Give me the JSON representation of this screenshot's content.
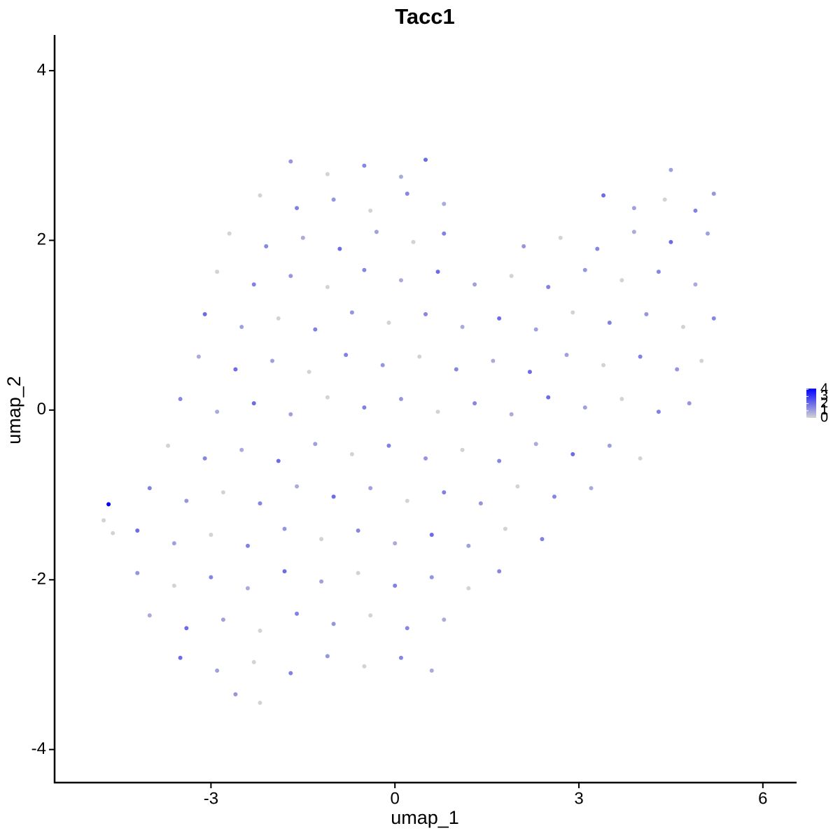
{
  "chart_data": {
    "type": "scatter",
    "title": "Tacc1",
    "xlabel": "umap_1",
    "ylabel": "umap_2",
    "xlim": [
      -5.55,
      6.55
    ],
    "ylim": [
      -4.39,
      4.42
    ],
    "xticks": [
      -3,
      0,
      3,
      6
    ],
    "yticks": [
      -4,
      -2,
      0,
      2,
      4
    ],
    "color_low": "#d3d3d3",
    "color_high": "#0000ff",
    "clim": [
      0,
      4.1
    ],
    "colorbar_ticks": [
      0,
      1,
      2,
      3,
      4
    ],
    "x": [
      -1.7,
      -1.1,
      -0.5,
      0.1,
      0.5,
      4.5,
      -2.2,
      -1.6,
      -1.0,
      -0.4,
      0.2,
      0.8,
      3.4,
      3.9,
      4.4,
      4.9,
      5.2,
      -2.7,
      -2.1,
      -1.5,
      -0.9,
      -0.3,
      0.3,
      0.8,
      2.1,
      2.7,
      3.3,
      3.9,
      4.5,
      5.1,
      -2.9,
      -2.3,
      -1.7,
      -1.1,
      -0.5,
      0.1,
      0.7,
      1.3,
      1.9,
      2.5,
      3.1,
      3.7,
      4.3,
      4.9,
      -3.1,
      -2.5,
      -1.9,
      -1.3,
      -0.7,
      -0.1,
      0.5,
      1.1,
      1.7,
      2.3,
      2.9,
      3.5,
      4.1,
      4.7,
      5.2,
      -3.2,
      -2.6,
      -2.0,
      -1.4,
      -0.8,
      -0.2,
      0.4,
      1.0,
      1.6,
      2.2,
      2.8,
      3.4,
      4.0,
      4.6,
      5.0,
      -3.5,
      -2.9,
      -2.3,
      -1.7,
      -1.1,
      -0.5,
      0.1,
      0.7,
      1.3,
      1.9,
      2.5,
      3.1,
      3.7,
      4.3,
      4.8,
      -3.7,
      -3.1,
      -2.5,
      -1.9,
      -1.3,
      -0.7,
      -0.1,
      0.5,
      1.1,
      1.7,
      2.3,
      2.9,
      3.5,
      4.0,
      -4.0,
      -3.4,
      -2.8,
      -2.2,
      -1.6,
      -1.0,
      -0.4,
      0.2,
      0.8,
      1.4,
      2.0,
      2.6,
      3.2,
      -4.2,
      -3.6,
      -3.0,
      -2.4,
      -1.8,
      -1.2,
      -0.6,
      0.0,
      0.6,
      1.2,
      1.8,
      2.4,
      -4.2,
      -3.6,
      -3.0,
      -2.4,
      -1.8,
      -1.2,
      -0.6,
      0.0,
      0.6,
      1.2,
      1.7,
      -4.0,
      -3.4,
      -2.8,
      -2.2,
      -1.6,
      -1.0,
      -0.4,
      0.2,
      0.8,
      -3.5,
      -2.9,
      -2.3,
      -1.7,
      -1.1,
      -0.5,
      0.1,
      0.6,
      -2.6,
      -2.2,
      -4.67,
      -4.75,
      -4.6
    ],
    "y": [
      2.93,
      2.78,
      2.88,
      2.75,
      2.95,
      2.83,
      2.53,
      2.38,
      2.48,
      2.35,
      2.55,
      2.43,
      2.53,
      2.38,
      2.48,
      2.35,
      2.55,
      2.08,
      1.93,
      2.03,
      1.9,
      2.1,
      1.98,
      2.08,
      1.93,
      2.03,
      1.9,
      2.1,
      1.98,
      2.08,
      1.63,
      1.48,
      1.58,
      1.45,
      1.65,
      1.53,
      1.63,
      1.48,
      1.58,
      1.45,
      1.65,
      1.53,
      1.63,
      1.48,
      1.13,
      0.98,
      1.08,
      0.95,
      1.15,
      1.03,
      1.13,
      0.98,
      1.08,
      0.95,
      1.15,
      1.03,
      1.13,
      0.98,
      1.08,
      0.63,
      0.48,
      0.58,
      0.45,
      0.65,
      0.53,
      0.63,
      0.48,
      0.58,
      0.45,
      0.65,
      0.53,
      0.63,
      0.48,
      0.58,
      0.13,
      -0.02,
      0.08,
      -0.05,
      0.15,
      0.03,
      0.13,
      -0.02,
      0.08,
      -0.05,
      0.15,
      0.03,
      0.13,
      -0.02,
      0.08,
      -0.42,
      -0.57,
      -0.47,
      -0.6,
      -0.4,
      -0.52,
      -0.42,
      -0.57,
      -0.47,
      -0.6,
      -0.4,
      -0.52,
      -0.42,
      -0.57,
      -0.92,
      -1.07,
      -0.97,
      -1.1,
      -0.9,
      -1.02,
      -0.92,
      -1.07,
      -0.97,
      -1.1,
      -0.9,
      -1.02,
      -0.92,
      -1.42,
      -1.57,
      -1.47,
      -1.6,
      -1.4,
      -1.52,
      -1.42,
      -1.57,
      -1.47,
      -1.6,
      -1.4,
      -1.52,
      -1.92,
      -2.07,
      -1.97,
      -2.1,
      -1.9,
      -2.02,
      -1.92,
      -2.07,
      -1.97,
      -2.1,
      -1.9,
      -2.42,
      -2.57,
      -2.47,
      -2.6,
      -2.4,
      -2.52,
      -2.42,
      -2.57,
      -2.47,
      -2.92,
      -3.07,
      -2.97,
      -3.1,
      -2.9,
      -3.02,
      -2.92,
      -3.07,
      -3.35,
      -3.45,
      -1.11,
      -1.3,
      -1.45
    ],
    "values": [
      1.2,
      0,
      1.5,
      0.8,
      2,
      1,
      0,
      1.6,
      1.2,
      0,
      1.5,
      0.8,
      2,
      1,
      0,
      1.6,
      1.2,
      0,
      1.5,
      0.8,
      2,
      1,
      0,
      1.6,
      1.2,
      0,
      1.5,
      0.8,
      2,
      1,
      0,
      1.6,
      1.2,
      0,
      1.5,
      0.8,
      2,
      1,
      0,
      1.6,
      1.2,
      0,
      1.5,
      0.8,
      2,
      1,
      0,
      1.6,
      1.2,
      0,
      1.5,
      0.8,
      2,
      1,
      0,
      1.6,
      1.2,
      0,
      1.5,
      0.8,
      2,
      1,
      0,
      1.6,
      1.2,
      0,
      1.5,
      0.8,
      2,
      1,
      0,
      1.6,
      1.2,
      0,
      1.5,
      0.8,
      2,
      1,
      0,
      1.6,
      1.2,
      0,
      1.5,
      0.8,
      2,
      1,
      0,
      1.6,
      1.2,
      0,
      1.5,
      0.8,
      2,
      1,
      0,
      1.6,
      1.2,
      0,
      1.5,
      0.8,
      2,
      1,
      0,
      1.6,
      1.2,
      0,
      1.5,
      0.8,
      2,
      1,
      0,
      1.6,
      1.2,
      0,
      1.5,
      0.8,
      2,
      1,
      0,
      1.6,
      1.2,
      0,
      1.5,
      0.8,
      2,
      1,
      0,
      1.6,
      1.2,
      0,
      1.5,
      0.8,
      2,
      1,
      0,
      1.6,
      1.2,
      0,
      1.5,
      0.8,
      2,
      1,
      0,
      1.6,
      1.2,
      0,
      1.5,
      0.8,
      2,
      1,
      0,
      1.6,
      1.2,
      0,
      1.5,
      0.8,
      1.2,
      0,
      4.1,
      0,
      0
    ]
  }
}
